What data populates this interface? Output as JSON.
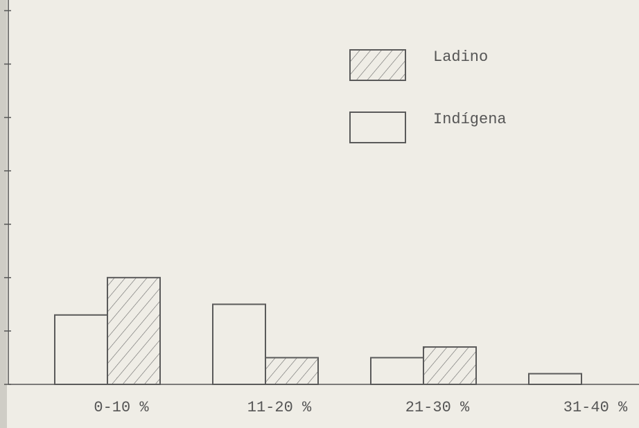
{
  "chart_data": {
    "type": "bar",
    "categories": [
      "0-10 %",
      "11-20 %",
      "21-30 %",
      "31-40 %"
    ],
    "series": [
      {
        "name": "Ladino",
        "color": "#5a5a5a",
        "hatched": true,
        "values": [
          2.0,
          0.5,
          0.7,
          null
        ]
      },
      {
        "name": "Indígena",
        "color": "#5a5a5a",
        "hatched": false,
        "values": [
          1.3,
          1.5,
          0.5,
          0.2
        ]
      }
    ],
    "ylim": [
      0,
      7.2
    ],
    "yticks": [
      0,
      1,
      2,
      3,
      4,
      5,
      6,
      7
    ],
    "grid": false,
    "legend": "top-right"
  }
}
